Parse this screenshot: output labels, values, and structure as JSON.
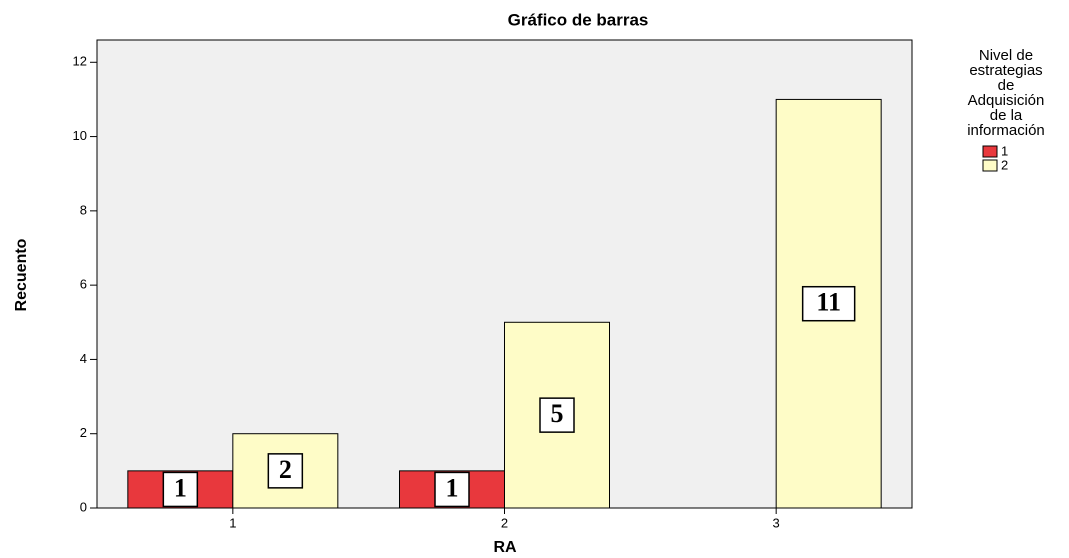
{
  "chart_data": {
    "type": "bar",
    "title": "Gráfico de barras",
    "x_label": "RA",
    "y_label": "Recuento",
    "categories": [
      "1",
      "2",
      "3"
    ],
    "legend_title": [
      "Nivel de",
      "estrategias",
      "de",
      "Adquisición",
      "de la",
      "información"
    ],
    "series": [
      {
        "name": "1",
        "color": "#e8383d",
        "values": [
          1,
          1,
          null
        ]
      },
      {
        "name": "2",
        "color": "#fefcc7",
        "values": [
          2,
          5,
          11
        ]
      }
    ],
    "ylim": [
      0,
      12.6
    ],
    "yticks": [
      0,
      2,
      4,
      6,
      8,
      10,
      12
    ],
    "grid": false,
    "legend": "right"
  }
}
